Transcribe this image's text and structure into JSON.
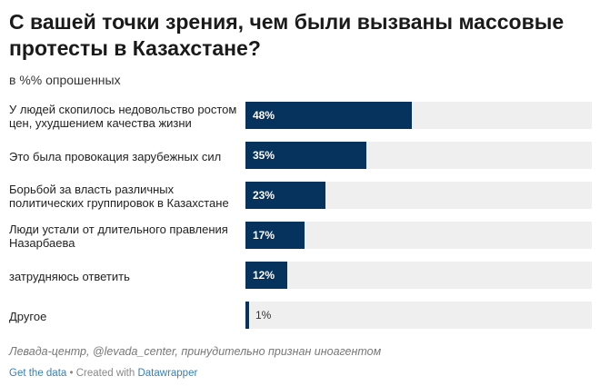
{
  "header": {
    "title": "С вашей точки зрения, чем были вызваны массовые протесты в Казахстане?",
    "subtitle": "в %% опрошенных"
  },
  "chart_data": {
    "type": "bar",
    "orientation": "horizontal",
    "categories": [
      "У людей скопилось недовольство ростом цен, ухудшением качества жизни",
      "Это была провокация зарубежных сил",
      "Борьбой за власть различных политических группировок в Казахстане",
      "Люди устали от длительного правления Назарбаева",
      "затрудняюсь ответить",
      "Другое"
    ],
    "values": [
      48,
      35,
      23,
      17,
      12,
      1
    ],
    "value_labels": [
      "48%",
      "35%",
      "23%",
      "17%",
      "12%",
      "1%"
    ],
    "xlim": [
      0,
      100
    ],
    "bar_color": "#06325e",
    "track_color": "#efefef"
  },
  "footer": {
    "source": "Левада-центр, @levada_center, принудительно признан иноагентом",
    "get_data": "Get the data",
    "separator": " • Created with ",
    "tool": "Datawrapper"
  }
}
